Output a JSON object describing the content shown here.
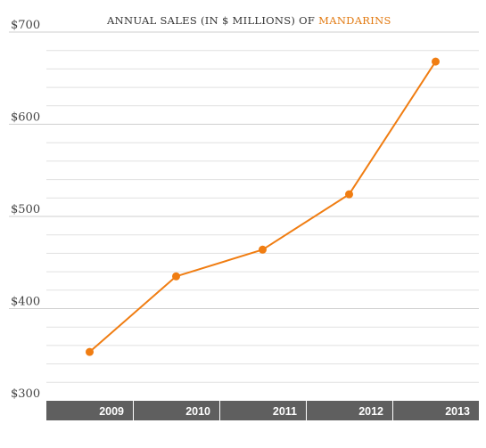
{
  "chart_data": {
    "type": "line",
    "title_prefix": "ANNUAL SALES (IN $ MILLIONS) OF ",
    "title_highlight": "MANDARINS",
    "categories": [
      "2009",
      "2010",
      "2011",
      "2012",
      "2013"
    ],
    "series": [
      {
        "values": [
          353,
          435,
          464,
          524,
          668
        ]
      }
    ],
    "ylim": [
      300,
      700
    ],
    "yticks": [
      300,
      400,
      500,
      600,
      700
    ],
    "ytick_labels": [
      "$300",
      "$400",
      "$500",
      "$600",
      "$700"
    ],
    "grid": true,
    "colors": {
      "line": "#f07d12",
      "axis_band": "#5f5f5f",
      "grid": "#e1e1e1",
      "major_grid": "#cfcfcf",
      "title_highlight": "#e27a12"
    }
  }
}
